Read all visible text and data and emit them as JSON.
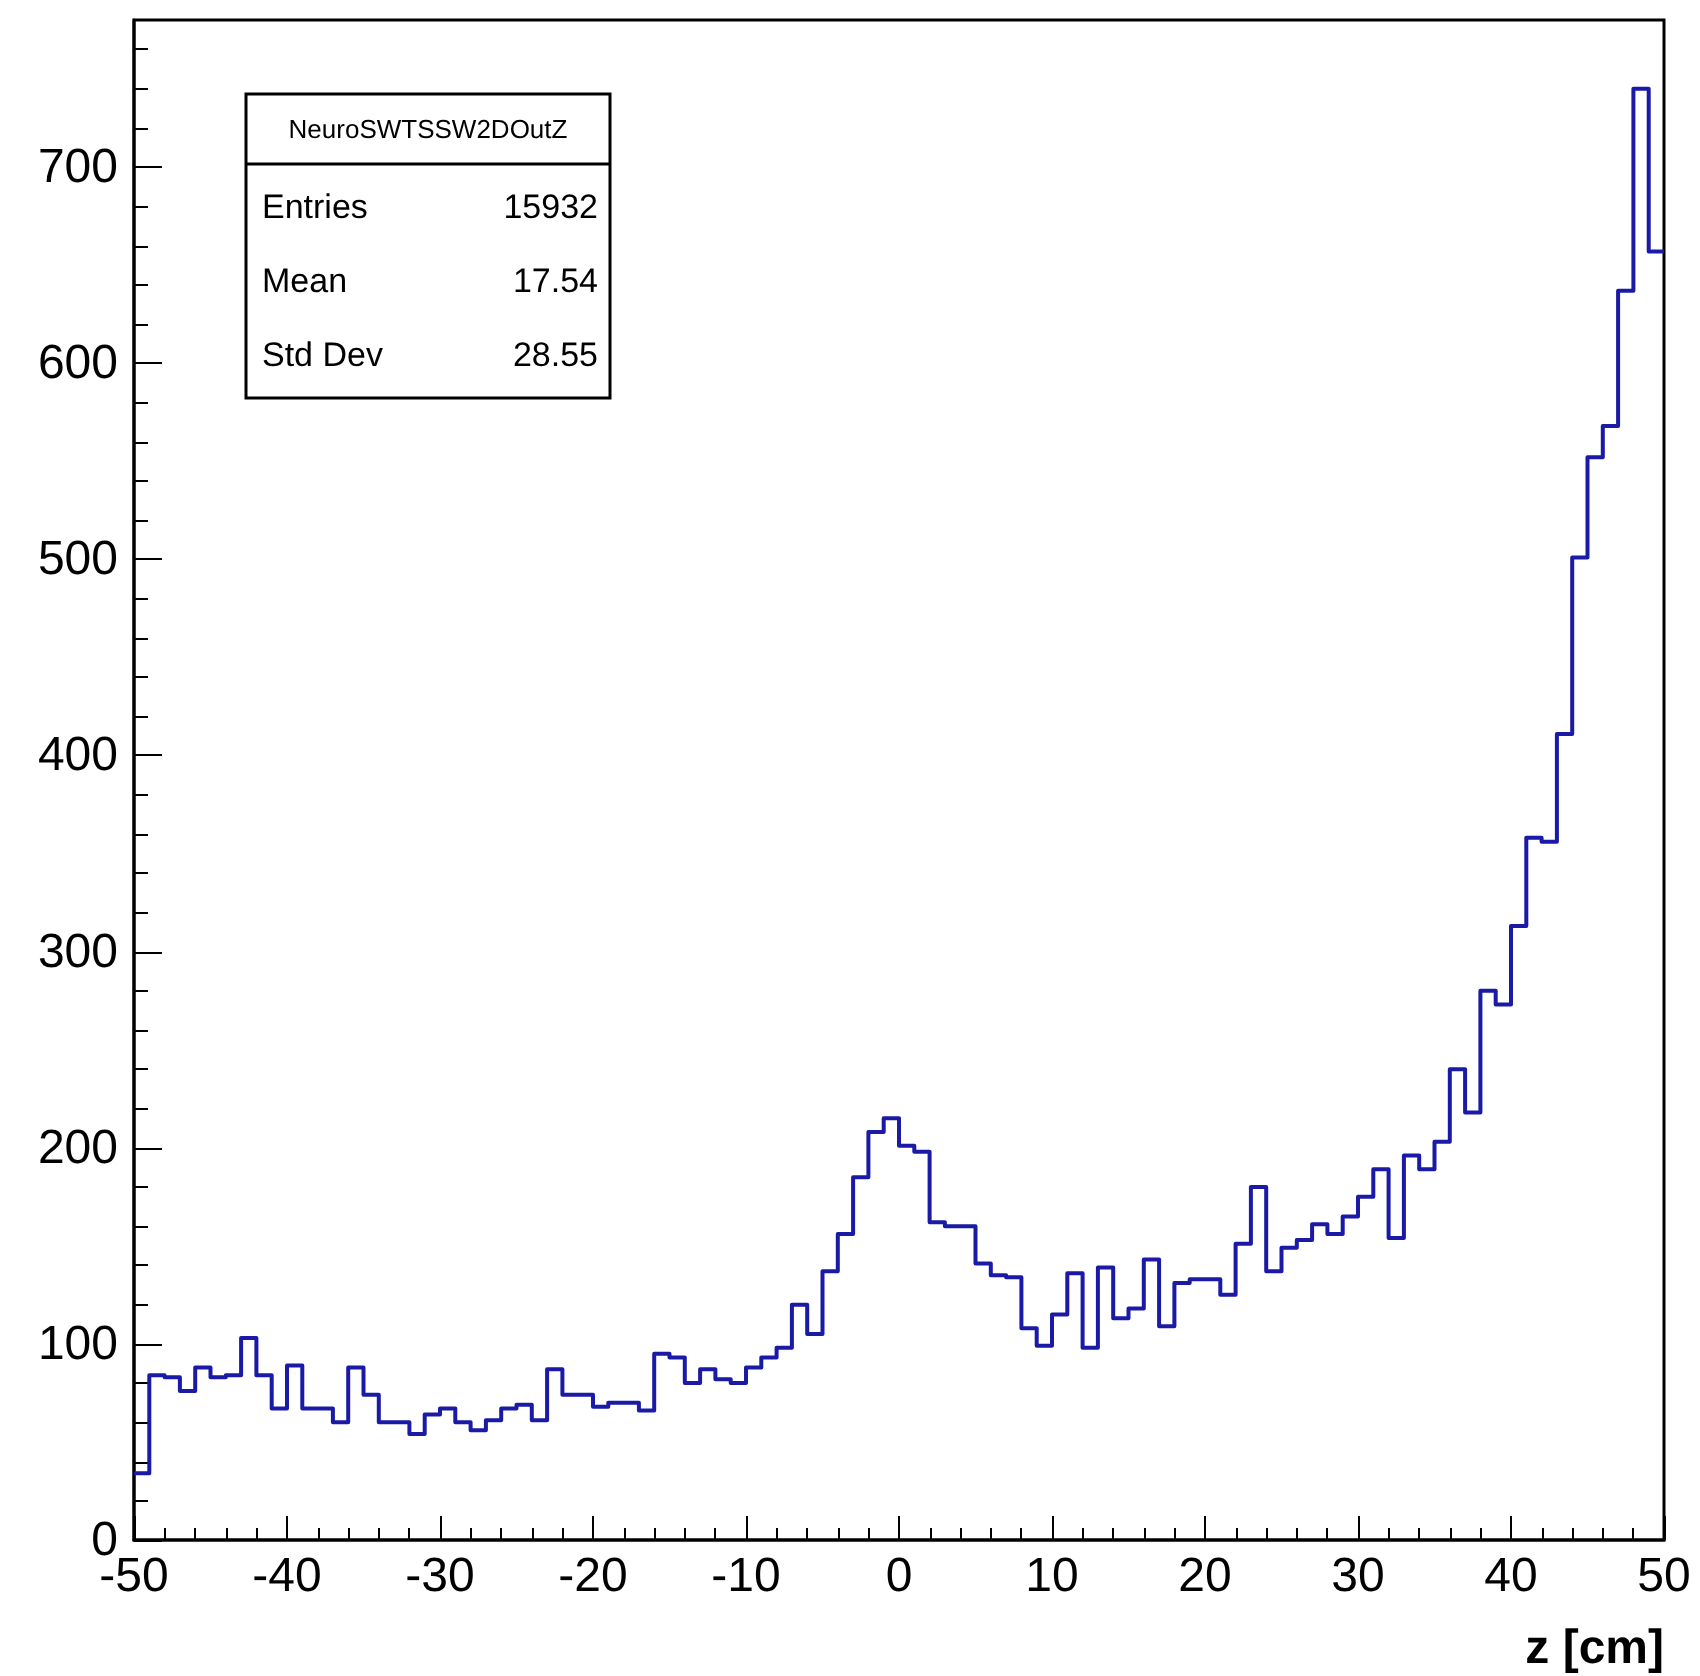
{
  "chart_data": {
    "type": "histogram",
    "xlabel": "z [cm]",
    "bins": [
      -50,
      -49,
      -48,
      -47,
      -46,
      -45,
      -44,
      -43,
      -42,
      -41,
      -40,
      -39,
      -38,
      -37,
      -36,
      -35,
      -34,
      -33,
      -32,
      -31,
      -30,
      -29,
      -28,
      -27,
      -26,
      -25,
      -24,
      -23,
      -22,
      -21,
      -20,
      -19,
      -18,
      -17,
      -16,
      -15,
      -14,
      -13,
      -12,
      -11,
      -10,
      -9,
      -8,
      -7,
      -6,
      -5,
      -4,
      -3,
      -2,
      -1,
      0,
      1,
      2,
      3,
      4,
      5,
      6,
      7,
      8,
      9,
      10,
      11,
      12,
      13,
      14,
      15,
      16,
      17,
      18,
      19,
      20,
      21,
      22,
      23,
      24,
      25,
      26,
      27,
      28,
      29,
      30,
      31,
      32,
      33,
      34,
      35,
      36,
      37,
      38,
      39,
      40,
      41,
      42,
      43,
      44,
      45,
      46,
      47,
      48,
      49,
      50
    ],
    "values": [
      34,
      84,
      83,
      76,
      88,
      83,
      84,
      103,
      84,
      67,
      89,
      67,
      67,
      60,
      88,
      74,
      60,
      60,
      54,
      64,
      67,
      60,
      56,
      61,
      67,
      69,
      61,
      87,
      74,
      74,
      68,
      70,
      70,
      66,
      95,
      93,
      80,
      87,
      82,
      80,
      88,
      93,
      98,
      120,
      105,
      137,
      156,
      185,
      208,
      215,
      201,
      198,
      162,
      160,
      160,
      141,
      135,
      134,
      108,
      99,
      115,
      136,
      98,
      139,
      113,
      118,
      143,
      109,
      131,
      133,
      133,
      125,
      151,
      180,
      137,
      149,
      153,
      161,
      156,
      165,
      175,
      189,
      154,
      196,
      189,
      203,
      240,
      218,
      280,
      273,
      313,
      358,
      356,
      411,
      501,
      552,
      568,
      637,
      740,
      657
    ],
    "color": "#1a1aa6",
    "xlim": [
      -50,
      50
    ],
    "xticks": [
      -50,
      -40,
      -30,
      -20,
      -10,
      0,
      10,
      20,
      30,
      40,
      50
    ],
    "ylim": [
      0,
      775
    ],
    "yticks": [
      0,
      100,
      200,
      300,
      400,
      500,
      600,
      700
    ],
    "annotations": [
      "NeuroSWTSSW2DOutZ",
      "Entries 15932",
      "Mean 17.54",
      "Std Dev 28.55"
    ]
  }
}
